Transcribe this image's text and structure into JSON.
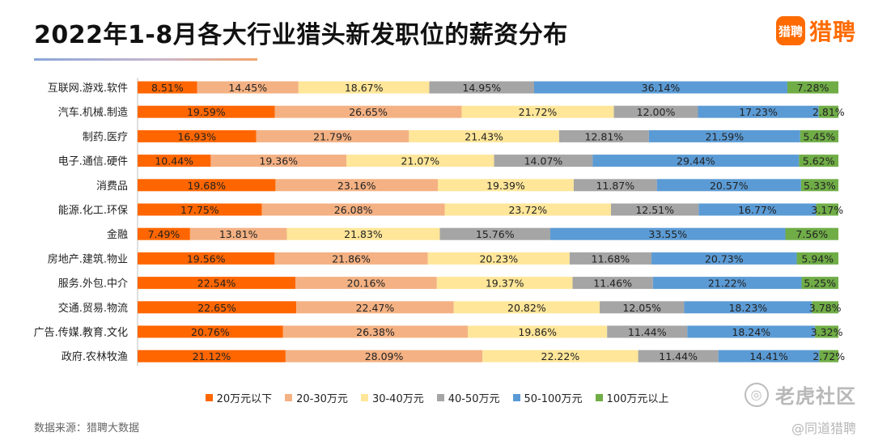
{
  "title": "2022年1-8月各大行业猎头新发职位的薪资分布",
  "logo": {
    "icon_text": "猎聘",
    "text": "猎聘"
  },
  "source": "数据来源：猎聘大数据",
  "watermarks": {
    "main": "老虎社区",
    "sub": "@同道猎聘"
  },
  "colors": {
    "20万元以下": "#ff6600",
    "20-30万元": "#f4b183",
    "30-40万元": "#ffe699",
    "40-50万元": "#a5a5a5",
    "50-100万元": "#5b9bd5",
    "100万元以上": "#70ad47"
  },
  "chart_data": {
    "type": "bar",
    "orientation": "horizontal",
    "stacked": true,
    "percent": true,
    "title": "2022年1-8月各大行业猎头新发职位的薪资分布",
    "xlim": [
      0,
      100
    ],
    "legend_position": "bottom",
    "categories": [
      "互联网.游戏.软件",
      "汽车.机械.制造",
      "制药.医疗",
      "电子.通信.硬件",
      "消费品",
      "能源.化工.环保",
      "金融",
      "房地产.建筑.物业",
      "服务.外包.中介",
      "交通.贸易.物流",
      "广告.传媒.教育.文化",
      "政府.农林牧渔"
    ],
    "series": [
      {
        "name": "20万元以下",
        "values": [
          8.51,
          19.59,
          16.93,
          10.44,
          19.68,
          17.75,
          7.49,
          19.56,
          22.54,
          22.65,
          20.76,
          21.12
        ]
      },
      {
        "name": "20-30万元",
        "values": [
          14.45,
          26.65,
          21.79,
          19.36,
          23.16,
          26.08,
          13.81,
          21.86,
          20.16,
          22.47,
          26.38,
          28.09
        ]
      },
      {
        "name": "30-40万元",
        "values": [
          18.67,
          21.72,
          21.43,
          21.07,
          19.39,
          23.72,
          21.83,
          20.23,
          19.37,
          20.82,
          19.86,
          22.22
        ]
      },
      {
        "name": "40-50万元",
        "values": [
          14.95,
          12.0,
          12.81,
          14.07,
          11.87,
          12.51,
          15.76,
          11.68,
          11.46,
          12.05,
          11.44,
          11.44
        ]
      },
      {
        "name": "50-100万元",
        "values": [
          36.14,
          17.23,
          21.59,
          29.44,
          20.57,
          16.77,
          33.55,
          20.73,
          21.22,
          18.23,
          18.24,
          14.41
        ]
      },
      {
        "name": "100万元以上",
        "values": [
          7.28,
          2.81,
          5.45,
          5.62,
          5.33,
          3.17,
          7.56,
          5.94,
          5.25,
          3.78,
          3.32,
          2.72
        ]
      }
    ]
  }
}
